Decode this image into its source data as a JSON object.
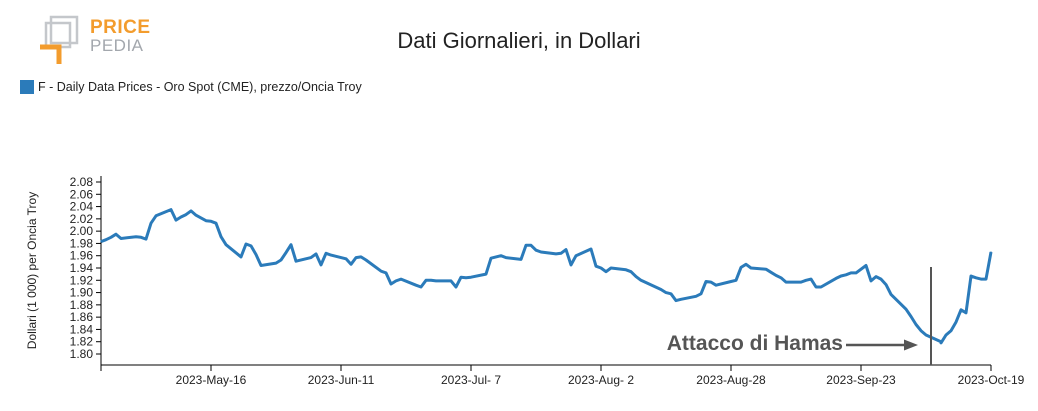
{
  "logo": {
    "line1": "PRICE",
    "line2": "PEDIA"
  },
  "colors": {
    "series": "#2b7bba",
    "logo_orange": "#f39c2d",
    "logo_gray": "#a3a7ad",
    "annotation": "#555555"
  },
  "chart_data": {
    "type": "line",
    "title": "Dati Giornalieri, in Dollari",
    "ylabel": "Dollari (1 000) per Oncia Troy",
    "xlabel": "",
    "ylim": [
      1.79,
      2.09
    ],
    "yticks": [
      "2.08",
      "2.06",
      "2.04",
      "2.02",
      "2.00",
      "1.98",
      "1.96",
      "1.94",
      "1.92",
      "1.90",
      "1.88",
      "1.86",
      "1.84",
      "1.82",
      "1.80"
    ],
    "xlim": [
      "2023-04-24",
      "2023-10-19"
    ],
    "xticks": [
      {
        "date": "2023-05-16",
        "label": "2023-May-16"
      },
      {
        "date": "2023-06-11",
        "label": "2023-Jun-11"
      },
      {
        "date": "2023-07-07",
        "label": "2023-Jul- 7"
      },
      {
        "date": "2023-08-02",
        "label": "2023-Aug- 2"
      },
      {
        "date": "2023-08-28",
        "label": "2023-Aug-28"
      },
      {
        "date": "2023-09-23",
        "label": "2023-Sep-23"
      },
      {
        "date": "2023-10-19",
        "label": "2023-Oct-19"
      }
    ],
    "grid": false,
    "legend_position": "top-left",
    "series": [
      {
        "name": "F - Daily Data Prices - Oro Spot (CME), prezzo/Oncia Troy",
        "points": [
          [
            "2023-04-24",
            1.983
          ],
          [
            "2023-04-25",
            1.986
          ],
          [
            "2023-04-26",
            1.99
          ],
          [
            "2023-04-27",
            1.995
          ],
          [
            "2023-04-28",
            1.988
          ],
          [
            "2023-05-01",
            1.991
          ],
          [
            "2023-05-02",
            1.99
          ],
          [
            "2023-05-03",
            1.987
          ],
          [
            "2023-05-04",
            2.013
          ],
          [
            "2023-05-05",
            2.025
          ],
          [
            "2023-05-08",
            2.035
          ],
          [
            "2023-05-09",
            2.018
          ],
          [
            "2023-05-10",
            2.023
          ],
          [
            "2023-05-11",
            2.027
          ],
          [
            "2023-05-12",
            2.033
          ],
          [
            "2023-05-13",
            2.026
          ],
          [
            "2023-05-15",
            2.017
          ],
          [
            "2023-05-16",
            2.016
          ],
          [
            "2023-05-17",
            2.013
          ],
          [
            "2023-05-18",
            1.991
          ],
          [
            "2023-05-19",
            1.978
          ],
          [
            "2023-05-22",
            1.958
          ],
          [
            "2023-05-23",
            1.979
          ],
          [
            "2023-05-24",
            1.976
          ],
          [
            "2023-05-25",
            1.962
          ],
          [
            "2023-05-26",
            1.944
          ],
          [
            "2023-05-29",
            1.948
          ],
          [
            "2023-05-30",
            1.953
          ],
          [
            "2023-05-31",
            1.965
          ],
          [
            "2023-06-01",
            1.978
          ],
          [
            "2023-06-02",
            1.951
          ],
          [
            "2023-06-05",
            1.957
          ],
          [
            "2023-06-06",
            1.963
          ],
          [
            "2023-06-07",
            1.945
          ],
          [
            "2023-06-08",
            1.964
          ],
          [
            "2023-06-09",
            1.961
          ],
          [
            "2023-06-12",
            1.955
          ],
          [
            "2023-06-13",
            1.946
          ],
          [
            "2023-06-14",
            1.957
          ],
          [
            "2023-06-15",
            1.958
          ],
          [
            "2023-06-16",
            1.953
          ],
          [
            "2023-06-19",
            1.935
          ],
          [
            "2023-06-20",
            1.932
          ],
          [
            "2023-06-21",
            1.914
          ],
          [
            "2023-06-22",
            1.919
          ],
          [
            "2023-06-23",
            1.922
          ],
          [
            "2023-06-26",
            1.912
          ],
          [
            "2023-06-27",
            1.909
          ],
          [
            "2023-06-28",
            1.92
          ],
          [
            "2023-06-29",
            1.92
          ],
          [
            "2023-06-30",
            1.919
          ],
          [
            "2023-07-03",
            1.919
          ],
          [
            "2023-07-04",
            1.909
          ],
          [
            "2023-07-05",
            1.925
          ],
          [
            "2023-07-06",
            1.924
          ],
          [
            "2023-07-07",
            1.925
          ],
          [
            "2023-07-10",
            1.93
          ],
          [
            "2023-07-11",
            1.956
          ],
          [
            "2023-07-12",
            1.958
          ],
          [
            "2023-07-13",
            1.96
          ],
          [
            "2023-07-14",
            1.957
          ],
          [
            "2023-07-17",
            1.954
          ],
          [
            "2023-07-18",
            1.977
          ],
          [
            "2023-07-19",
            1.977
          ],
          [
            "2023-07-20",
            1.969
          ],
          [
            "2023-07-21",
            1.966
          ],
          [
            "2023-07-24",
            1.963
          ],
          [
            "2023-07-25",
            1.964
          ],
          [
            "2023-07-26",
            1.97
          ],
          [
            "2023-07-27",
            1.945
          ],
          [
            "2023-07-28",
            1.96
          ],
          [
            "2023-07-31",
            1.971
          ],
          [
            "2023-08-01",
            1.943
          ],
          [
            "2023-08-02",
            1.94
          ],
          [
            "2023-08-03",
            1.934
          ],
          [
            "2023-08-04",
            1.94
          ],
          [
            "2023-08-07",
            1.937
          ],
          [
            "2023-08-08",
            1.934
          ],
          [
            "2023-08-09",
            1.926
          ],
          [
            "2023-08-10",
            1.92
          ],
          [
            "2023-08-14",
            1.905
          ],
          [
            "2023-08-15",
            1.9
          ],
          [
            "2023-08-16",
            1.898
          ],
          [
            "2023-08-17",
            1.887
          ],
          [
            "2023-08-18",
            1.889
          ],
          [
            "2023-08-21",
            1.894
          ],
          [
            "2023-08-22",
            1.898
          ],
          [
            "2023-08-23",
            1.918
          ],
          [
            "2023-08-24",
            1.917
          ],
          [
            "2023-08-25",
            1.912
          ],
          [
            "2023-08-28",
            1.918
          ],
          [
            "2023-08-29",
            1.92
          ],
          [
            "2023-08-30",
            1.941
          ],
          [
            "2023-08-31",
            1.946
          ],
          [
            "2023-09-01",
            1.94
          ],
          [
            "2023-09-04",
            1.938
          ],
          [
            "2023-09-05",
            1.933
          ],
          [
            "2023-09-06",
            1.928
          ],
          [
            "2023-09-07",
            1.924
          ],
          [
            "2023-09-08",
            1.917
          ],
          [
            "2023-09-11",
            1.917
          ],
          [
            "2023-09-12",
            1.92
          ],
          [
            "2023-09-13",
            1.922
          ],
          [
            "2023-09-14",
            1.909
          ],
          [
            "2023-09-15",
            1.909
          ],
          [
            "2023-09-18",
            1.923
          ],
          [
            "2023-09-19",
            1.927
          ],
          [
            "2023-09-20",
            1.929
          ],
          [
            "2023-09-21",
            1.932
          ],
          [
            "2023-09-22",
            1.932
          ],
          [
            "2023-09-24",
            1.944
          ],
          [
            "2023-09-25",
            1.919
          ],
          [
            "2023-09-26",
            1.926
          ],
          [
            "2023-09-27",
            1.922
          ],
          [
            "2023-09-28",
            1.913
          ],
          [
            "2023-09-29",
            1.897
          ],
          [
            "2023-10-02",
            1.873
          ],
          [
            "2023-10-03",
            1.861
          ],
          [
            "2023-10-04",
            1.848
          ],
          [
            "2023-10-05",
            1.838
          ],
          [
            "2023-10-06",
            1.831
          ],
          [
            "2023-10-09",
            1.82
          ],
          [
            "2023-10-09",
            1.818
          ],
          [
            "2023-10-10",
            1.831
          ],
          [
            "2023-10-11",
            1.838
          ],
          [
            "2023-10-12",
            1.852
          ],
          [
            "2023-10-13",
            1.872
          ],
          [
            "2023-10-14",
            1.867
          ],
          [
            "2023-10-15",
            1.927
          ],
          [
            "2023-10-16",
            1.924
          ],
          [
            "2023-10-17",
            1.922
          ],
          [
            "2023-10-18",
            1.922
          ],
          [
            "2023-10-19",
            1.966
          ]
        ]
      }
    ],
    "annotations": [
      {
        "text": "Attacco di Hamas",
        "date": "2023-10-07"
      }
    ]
  }
}
